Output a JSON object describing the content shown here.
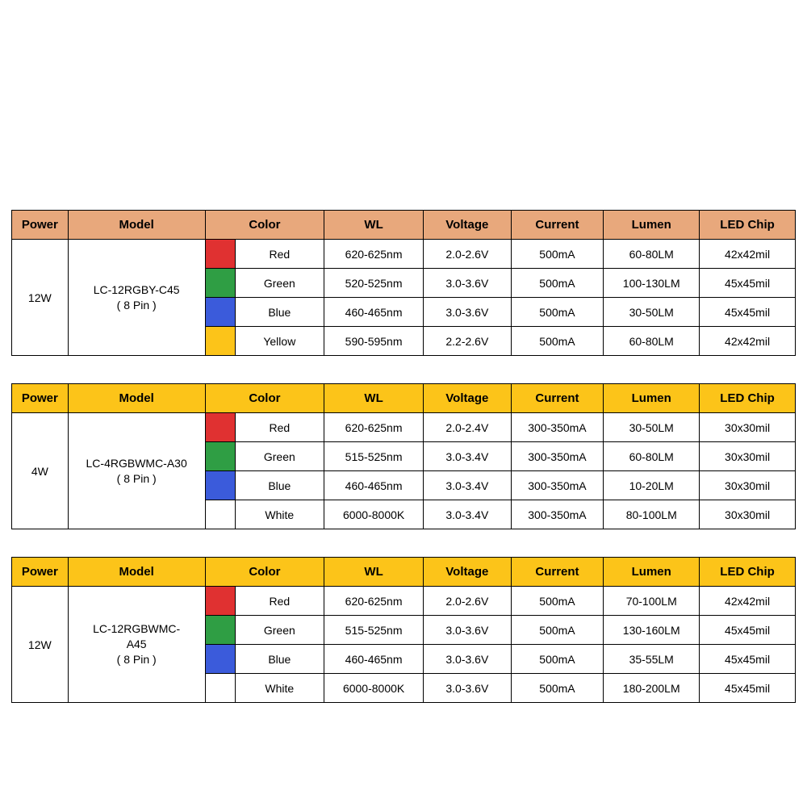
{
  "headers": {
    "power": "Power",
    "model": "Model",
    "color": "Color",
    "wl": "WL",
    "voltage": "Voltage",
    "current": "Current",
    "lumen": "Lumen",
    "led_chip": "LED Chip"
  },
  "colors": {
    "header_salmon": "#e8a87c",
    "header_yellow": "#fcc419",
    "swatch_red": "#e03131",
    "swatch_green": "#2f9e44",
    "swatch_blue": "#3b5bdb",
    "swatch_yellow": "#fcc419",
    "swatch_white": "#ffffff",
    "border": "#000000",
    "text": "#000000",
    "background": "#ffffff"
  },
  "tables": [
    {
      "header_color_key": "header_salmon",
      "power": "12W",
      "model_line1": "LC-12RGBY-C45",
      "model_line2": "( 8 Pin )",
      "rows": [
        {
          "swatch_key": "swatch_red",
          "color_name": "Red",
          "wl": "620-625nm",
          "voltage": "2.0-2.6V",
          "current": "500mA",
          "lumen": "60-80LM",
          "chip": "42x42mil"
        },
        {
          "swatch_key": "swatch_green",
          "color_name": "Green",
          "wl": "520-525nm",
          "voltage": "3.0-3.6V",
          "current": "500mA",
          "lumen": "100-130LM",
          "chip": "45x45mil"
        },
        {
          "swatch_key": "swatch_blue",
          "color_name": "Blue",
          "wl": "460-465nm",
          "voltage": "3.0-3.6V",
          "current": "500mA",
          "lumen": "30-50LM",
          "chip": "45x45mil"
        },
        {
          "swatch_key": "swatch_yellow",
          "color_name": "Yellow",
          "wl": "590-595nm",
          "voltage": "2.2-2.6V",
          "current": "500mA",
          "lumen": "60-80LM",
          "chip": "42x42mil"
        }
      ]
    },
    {
      "header_color_key": "header_yellow",
      "power": "4W",
      "model_line1": "LC-4RGBWMC-A30",
      "model_line2": "( 8 Pin )",
      "rows": [
        {
          "swatch_key": "swatch_red",
          "color_name": "Red",
          "wl": "620-625nm",
          "voltage": "2.0-2.4V",
          "current": "300-350mA",
          "lumen": "30-50LM",
          "chip": "30x30mil"
        },
        {
          "swatch_key": "swatch_green",
          "color_name": "Green",
          "wl": "515-525nm",
          "voltage": "3.0-3.4V",
          "current": "300-350mA",
          "lumen": "60-80LM",
          "chip": "30x30mil"
        },
        {
          "swatch_key": "swatch_blue",
          "color_name": "Blue",
          "wl": "460-465nm",
          "voltage": "3.0-3.4V",
          "current": "300-350mA",
          "lumen": "10-20LM",
          "chip": "30x30mil"
        },
        {
          "swatch_key": "swatch_white",
          "color_name": "White",
          "wl": "6000-8000K",
          "voltage": "3.0-3.4V",
          "current": "300-350mA",
          "lumen": "80-100LM",
          "chip": "30x30mil"
        }
      ]
    },
    {
      "header_color_key": "header_yellow",
      "power": "12W",
      "model_line1": "LC-12RGBWMC-",
      "model_line1b": "A45",
      "model_line2": "( 8 Pin )",
      "rows": [
        {
          "swatch_key": "swatch_red",
          "color_name": "Red",
          "wl": "620-625nm",
          "voltage": "2.0-2.6V",
          "current": "500mA",
          "lumen": "70-100LM",
          "chip": "42x42mil"
        },
        {
          "swatch_key": "swatch_green",
          "color_name": "Green",
          "wl": "515-525nm",
          "voltage": "3.0-3.6V",
          "current": "500mA",
          "lumen": "130-160LM",
          "chip": "45x45mil"
        },
        {
          "swatch_key": "swatch_blue",
          "color_name": "Blue",
          "wl": "460-465nm",
          "voltage": "3.0-3.6V",
          "current": "500mA",
          "lumen": "35-55LM",
          "chip": "45x45mil"
        },
        {
          "swatch_key": "swatch_white",
          "color_name": "White",
          "wl": "6000-8000K",
          "voltage": "3.0-3.6V",
          "current": "500mA",
          "lumen": "180-200LM",
          "chip": "45x45mil"
        }
      ]
    }
  ]
}
